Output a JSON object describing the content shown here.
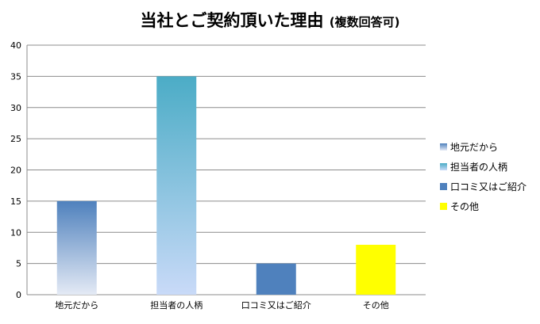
{
  "chart_data": {
    "type": "bar",
    "title": "当社とご契約頂いた理由",
    "subtitle": "(複数回答可)",
    "categories": [
      "地元だから",
      "担当者の人柄",
      "口コミ又はご紹介",
      "その他"
    ],
    "values": [
      15,
      35,
      5,
      8
    ],
    "ylim": [
      0,
      40
    ],
    "yticks": [
      0,
      5,
      10,
      15,
      20,
      25,
      30,
      35,
      40
    ],
    "grid": true,
    "legend_position": "right",
    "legend": [
      "地元だから",
      "担当者の人柄",
      "口コミ又はご紹介",
      "その他"
    ],
    "fills": [
      {
        "type": "gradient",
        "top": "#4f81bd",
        "bottom": "#e4eaf5"
      },
      {
        "type": "gradient",
        "top": "#4bacc6",
        "bottom": "#c9daf8"
      },
      {
        "type": "solid",
        "color": "#4f81bd"
      },
      {
        "type": "solid",
        "color": "#ffff00"
      }
    ]
  }
}
